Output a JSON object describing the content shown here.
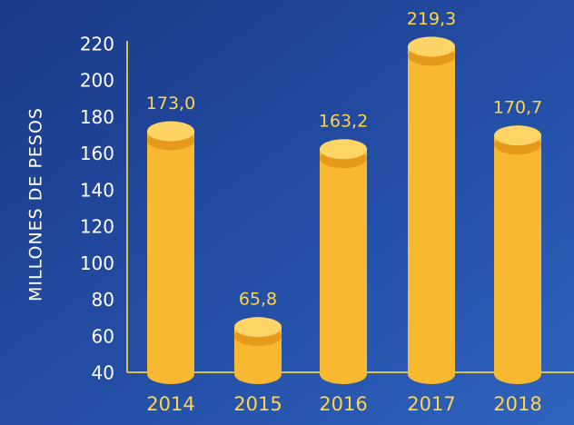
{
  "chart_data": {
    "type": "bar",
    "y_label": "MILLONES DE PESOS",
    "categories": [
      "2014",
      "2015",
      "2016",
      "2017",
      "2018"
    ],
    "values": [
      173.0,
      65.8,
      163.2,
      219.3,
      170.7
    ],
    "value_labels": [
      "173,0",
      "65,8",
      "163,2",
      "219,3",
      "170,7"
    ],
    "color": "#f8b930",
    "ylim": [
      40,
      220
    ],
    "yticks": [
      40,
      60,
      80,
      100,
      120,
      140,
      160,
      180,
      200,
      220
    ]
  }
}
